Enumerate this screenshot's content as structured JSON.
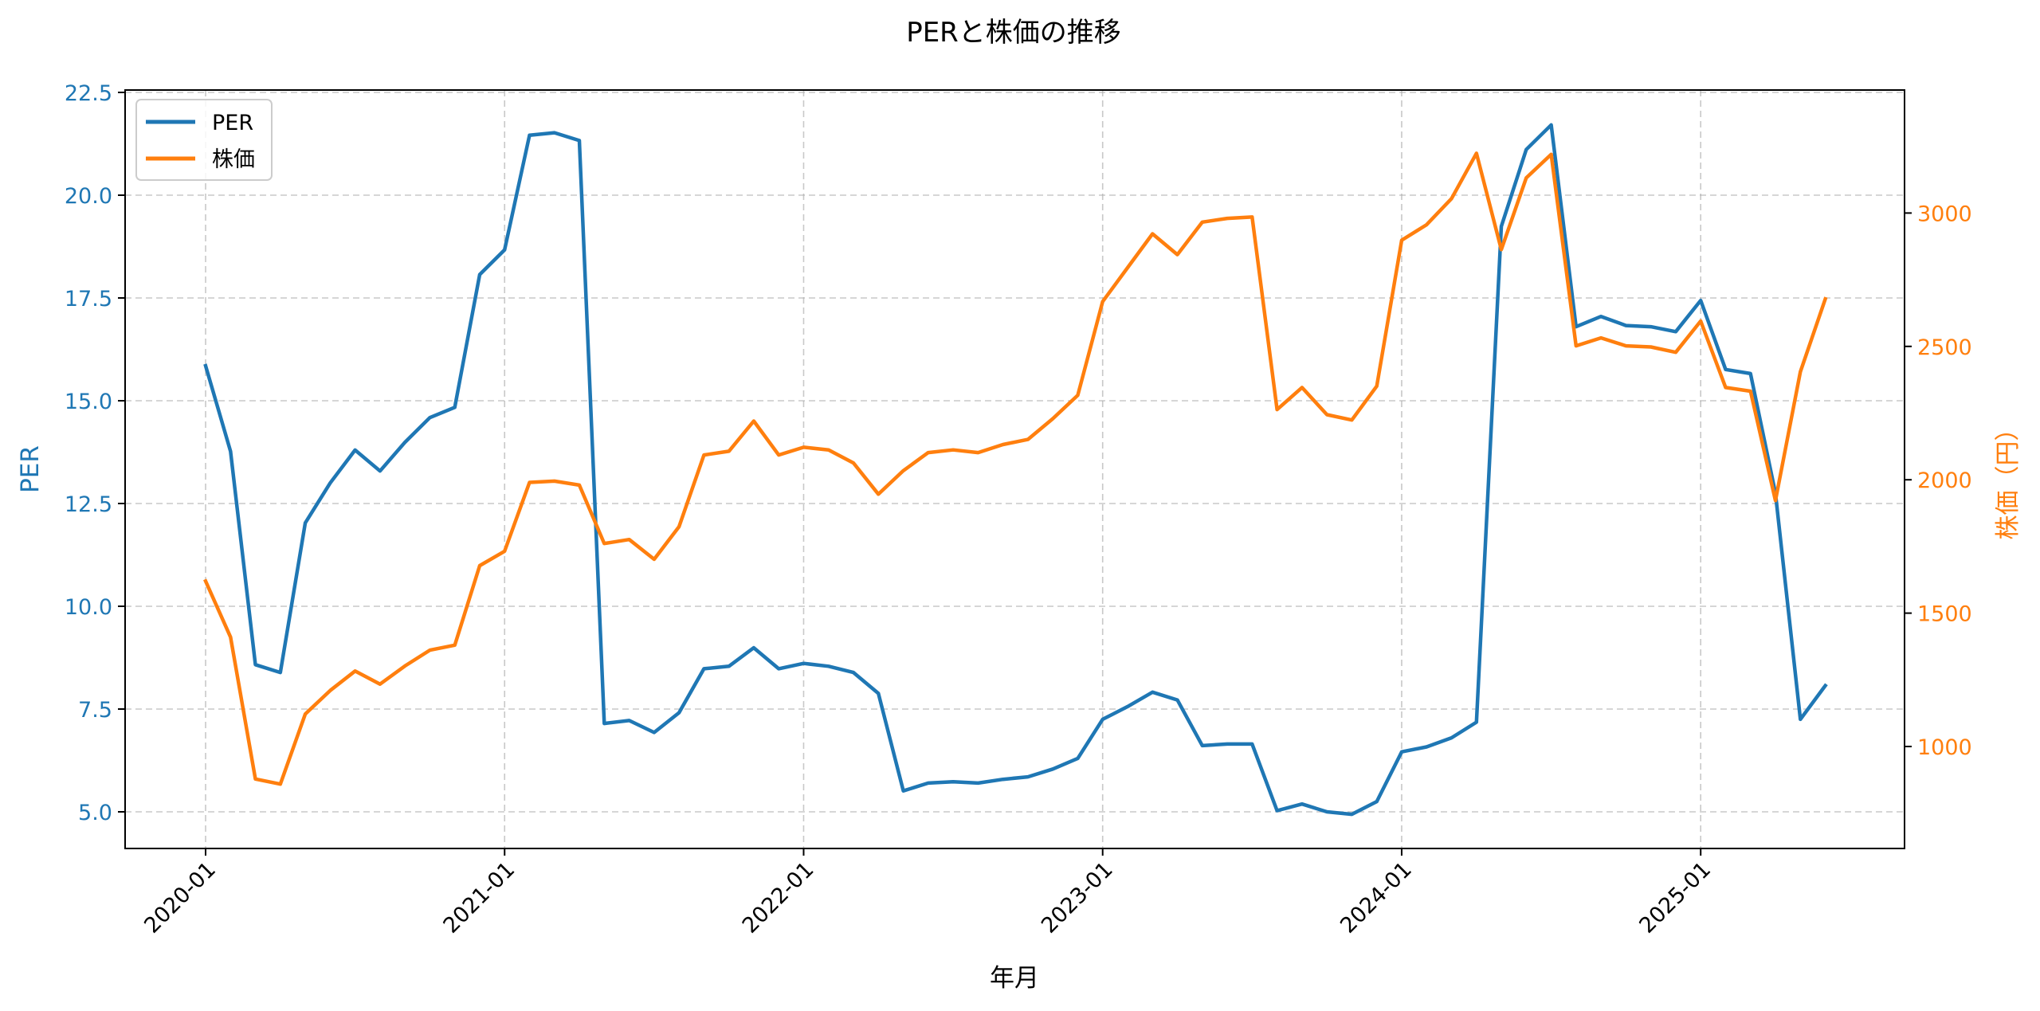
{
  "chart_data": {
    "type": "line",
    "title": "PERと株価の推移",
    "xlabel": "年月",
    "ylabel": "PER",
    "ylabel_right": "株価（円）",
    "ylim": [
      4.1,
      22.5
    ],
    "ylim_right": [
      620,
      3460
    ],
    "yticks": [
      "5.0",
      "7.5",
      "10.0",
      "12.5",
      "15.0",
      "17.5",
      "20.0",
      "22.5"
    ],
    "yticks_right": [
      "1000",
      "1500",
      "2000",
      "2500",
      "3000"
    ],
    "xticks": [
      "2020-01",
      "2021-01",
      "2022-01",
      "2023-01",
      "2024-01",
      "2025-01"
    ],
    "grid": true,
    "legend_position": "upper left",
    "colors": {
      "PER": "#1f77b4",
      "株価": "#ff7f0e"
    },
    "x": [
      "2020-01",
      "2020-02",
      "2020-03",
      "2020-04",
      "2020-05",
      "2020-06",
      "2020-07",
      "2020-08",
      "2020-09",
      "2020-10",
      "2020-11",
      "2020-12",
      "2021-01",
      "2021-02",
      "2021-03",
      "2021-04",
      "2021-05",
      "2021-06",
      "2021-07",
      "2021-08",
      "2021-09",
      "2021-10",
      "2021-11",
      "2021-12",
      "2022-01",
      "2022-02",
      "2022-03",
      "2022-04",
      "2022-05",
      "2022-06",
      "2022-07",
      "2022-08",
      "2022-09",
      "2022-10",
      "2022-11",
      "2022-12",
      "2023-01",
      "2023-02",
      "2023-03",
      "2023-04",
      "2023-05",
      "2023-06",
      "2023-07",
      "2023-08",
      "2023-09",
      "2023-10",
      "2023-11",
      "2023-12",
      "2024-01",
      "2024-02",
      "2024-03",
      "2024-04",
      "2024-05",
      "2024-06",
      "2024-07",
      "2024-08",
      "2024-09",
      "2024-10",
      "2024-11",
      "2024-12",
      "2025-01",
      "2025-02",
      "2025-03",
      "2025-04",
      "2025-05",
      "2025-06"
    ],
    "series": [
      {
        "name": "PER",
        "axis": "left",
        "values": [
          15.85,
          13.77,
          8.58,
          8.39,
          12.03,
          13.0,
          13.8,
          13.29,
          13.99,
          14.59,
          14.84,
          18.07,
          18.67,
          21.46,
          21.52,
          21.33,
          7.15,
          7.22,
          6.93,
          7.41,
          8.48,
          8.54,
          8.99,
          8.48,
          8.61,
          8.54,
          8.39,
          7.88,
          5.51,
          5.7,
          5.73,
          5.7,
          5.79,
          5.85,
          6.04,
          6.3,
          7.25,
          7.56,
          7.91,
          7.72,
          6.61,
          6.65,
          6.65,
          5.03,
          5.19,
          5.0,
          4.94,
          5.25,
          6.46,
          6.58,
          6.8,
          7.18,
          19.24,
          21.11,
          21.71,
          16.8,
          17.05,
          16.83,
          16.8,
          16.68,
          17.44,
          15.76,
          15.66,
          12.75,
          7.25,
          8.07
        ]
      },
      {
        "name": "株価",
        "axis": "right",
        "values": [
          1620,
          1410,
          878,
          859,
          1122,
          1210,
          1283,
          1234,
          1302,
          1361,
          1380,
          1678,
          1732,
          1990,
          1995,
          1980,
          1761,
          1776,
          1702,
          1824,
          2093,
          2107,
          2220,
          2093,
          2122,
          2112,
          2063,
          1946,
          2034,
          2102,
          2112,
          2102,
          2132,
          2151,
          2229,
          2317,
          2668,
          2795,
          2922,
          2844,
          2966,
          2980,
          2985,
          2263,
          2346,
          2244,
          2224,
          2351,
          2898,
          2956,
          3054,
          3224,
          2863,
          3132,
          3220,
          2502,
          2532,
          2502,
          2498,
          2478,
          2595,
          2346,
          2332,
          1922,
          2405,
          2678
        ]
      }
    ]
  }
}
